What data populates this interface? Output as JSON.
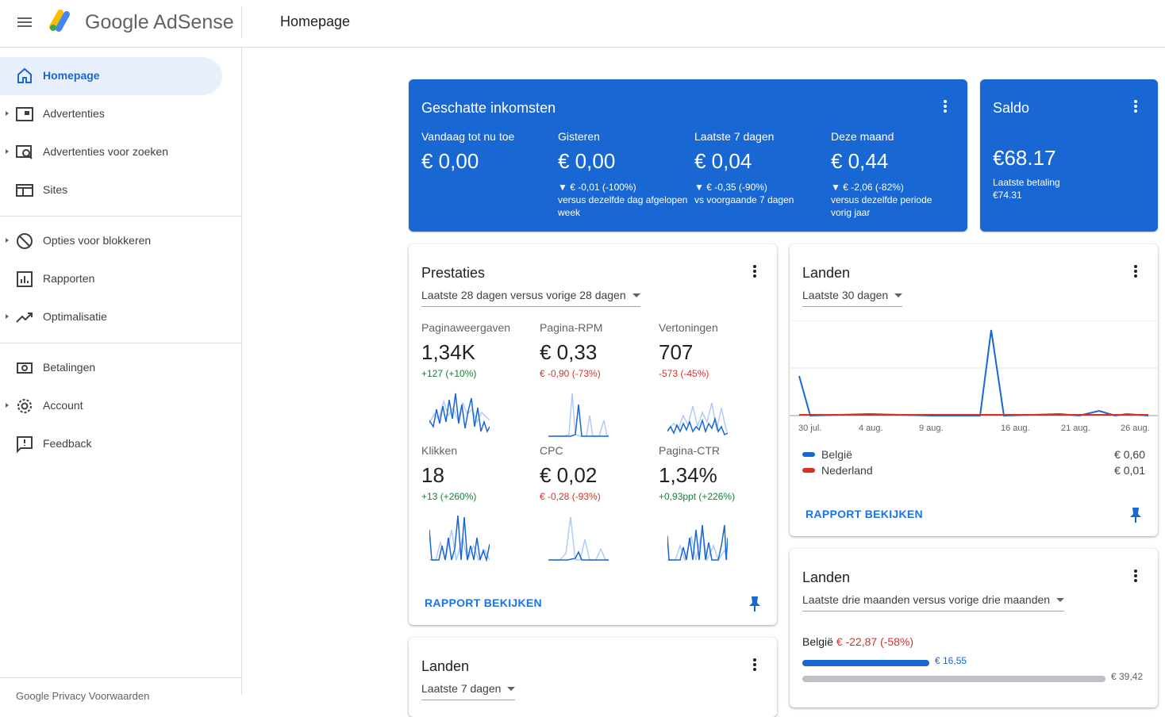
{
  "app": {
    "brand": "Google AdSense",
    "page_title": "Homepage"
  },
  "sidebar": {
    "items": [
      {
        "label": "Homepage",
        "icon": "home-icon",
        "active": true
      },
      {
        "label": "Advertenties",
        "icon": "ads-icon"
      },
      {
        "label": "Advertenties voor zoeken",
        "icon": "search-ads-icon"
      },
      {
        "label": "Sites",
        "icon": "sites-icon"
      },
      {
        "label": "Opties voor blokkeren",
        "icon": "block-icon"
      },
      {
        "label": "Rapporten",
        "icon": "reports-icon"
      },
      {
        "label": "Optimalisatie",
        "icon": "trending-icon"
      },
      {
        "label": "Betalingen",
        "icon": "payments-icon"
      },
      {
        "label": "Account",
        "icon": "gear-icon"
      },
      {
        "label": "Feedback",
        "icon": "feedback-icon"
      }
    ],
    "footer": "Google Privacy Voorwaarden"
  },
  "earnings": {
    "title": "Geschatte inkomsten",
    "columns": [
      {
        "label": "Vandaag tot nu toe",
        "value": "€ 0,00",
        "delta": "",
        "note": ""
      },
      {
        "label": "Gisteren",
        "value": "€ 0,00",
        "delta": "▼ € -0,01 (-100%)",
        "note": "versus dezelfde dag afgelopen week"
      },
      {
        "label": "Laatste 7 dagen",
        "value": "€ 0,04",
        "delta": "▼ € -0,35 (-90%)",
        "note": "vs voorgaande 7 dagen"
      },
      {
        "label": "Deze maand",
        "value": "€ 0,44",
        "delta": "▼ € -2,06 (-82%)",
        "note": "versus dezelfde periode vorig jaar"
      }
    ]
  },
  "balance": {
    "title": "Saldo",
    "value": "€68.17",
    "last_payment_label": "Laatste betaling",
    "last_payment_value": "€74.31"
  },
  "performance": {
    "title": "Prestaties",
    "range": "Laatste 28 dagen versus vorige 28 dagen",
    "metrics": [
      {
        "label": "Paginaweergaven",
        "value": "1,34K",
        "delta": "+127 (+10%)",
        "trend": "up"
      },
      {
        "label": "Pagina-RPM",
        "value": "€ 0,33",
        "delta": "€ -0,90 (-73%)",
        "trend": "down"
      },
      {
        "label": "Vertoningen",
        "value": "707",
        "delta": "-573 (-45%)",
        "trend": "down"
      },
      {
        "label": "Klikken",
        "value": "18",
        "delta": "+13 (+260%)",
        "trend": "up"
      },
      {
        "label": "CPC",
        "value": "€ 0,02",
        "delta": "€ -0,28 (-93%)",
        "trend": "down"
      },
      {
        "label": "Pagina-CTR",
        "value": "1,34%",
        "delta": "+0,93ppt (+226%)",
        "trend": "up"
      }
    ],
    "report_link": "RAPPORT BEKIJKEN"
  },
  "countries30": {
    "title": "Landen",
    "range": "Laatste 30 dagen",
    "ticks": [
      "30 jul.",
      "4 aug.",
      "9 aug.",
      "16 aug.",
      "21 aug.",
      "26 aug."
    ],
    "legend": [
      {
        "name": "België",
        "amount": "€ 0,60",
        "color": "#1967d2"
      },
      {
        "name": "Nederland",
        "amount": "€ 0,01",
        "color": "#d93025"
      }
    ],
    "report_link": "RAPPORT BEKIJKEN"
  },
  "countries3m": {
    "title": "Landen",
    "range": "Laatste drie maanden versus vorige drie maanden",
    "row_country": "België",
    "row_delta": "€ -22,87 (-58%)",
    "current_value": "€ 16,55",
    "previous_value": "€ 39,42",
    "current_amount": 16.55,
    "previous_amount": 39.42
  },
  "countries7": {
    "title": "Landen",
    "range": "Laatste 7 dagen"
  },
  "colors": {
    "accent": "#1967d2",
    "positive": "#188038",
    "negative": "#d93025"
  }
}
